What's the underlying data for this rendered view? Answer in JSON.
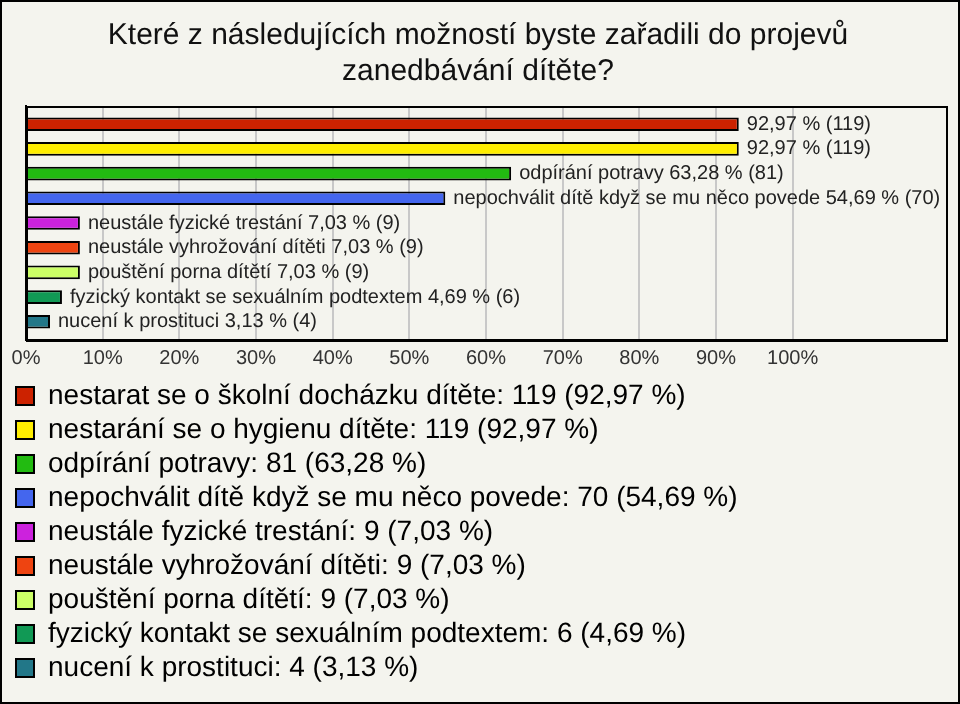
{
  "chart_data": {
    "type": "bar",
    "orientation": "horizontal",
    "title": "Které z následujících možností byste zařadili do projevů zanedbávání dítěte?",
    "categories": [
      null
    ],
    "series": [
      {
        "name": "nestarat se o školní docházku dítěte: 119 (92,97 %)",
        "color": "#cc2200",
        "values": [
          92.97
        ],
        "value_labels": [
          "92,97 % (119)"
        ]
      },
      {
        "name": "nestarání se o hygienu dítěte: 119 (92,97 %)",
        "color": "#ffee00",
        "values": [
          92.97
        ],
        "value_labels": [
          "92,97 % (119)"
        ]
      },
      {
        "name": "odpírání potravy: 81 (63,28 %)",
        "color": "#22bb11",
        "values": [
          63.28
        ],
        "value_labels": [
          "odpírání potravy 63,28 % (81)"
        ]
      },
      {
        "name": "nepochválit dítě když se mu něco povede: 70 (54,69 %)",
        "color": "#4466ee",
        "values": [
          54.69
        ],
        "value_labels": [
          "nepochválit dítě když se mu něco povede 54,69 % (70)"
        ]
      },
      {
        "name": "neustále fyzické trestání: 9 (7,03 %)",
        "color": "#cc22dd",
        "values": [
          7.03
        ],
        "value_labels": [
          "neustále fyzické trestání 7,03 % (9)"
        ]
      },
      {
        "name": "neustále vyhrožování dítěti: 9 (7,03 %)",
        "color": "#ee4411",
        "values": [
          7.03
        ],
        "value_labels": [
          "neustále vyhrožování dítěti 7,03 % (9)"
        ]
      },
      {
        "name": "pouštění porna dítětí: 9 (7,03 %)",
        "color": "#ccff66",
        "values": [
          7.03
        ],
        "value_labels": [
          "pouštění porna dítětí 7,03 % (9)"
        ]
      },
      {
        "name": "fyzický kontakt se sexuálním podtextem: 6 (4,69 %)",
        "color": "#119955",
        "values": [
          4.69
        ],
        "value_labels": [
          "fyzický kontakt se sexuálním podtextem 4,69 % (6)"
        ]
      },
      {
        "name": "nucení k prostituci: 4 (3,13 %)",
        "color": "#227788",
        "values": [
          3.13
        ],
        "value_labels": [
          "nucení k prostituci 3,13 % (4)"
        ]
      }
    ],
    "xlim": [
      0,
      120
    ],
    "xticks": [
      {
        "value": 0,
        "label": "0%"
      },
      {
        "value": 10,
        "label": "10%"
      },
      {
        "value": 20,
        "label": "20%"
      },
      {
        "value": 30,
        "label": "30%"
      },
      {
        "value": 40,
        "label": "40%"
      },
      {
        "value": 50,
        "label": "50%"
      },
      {
        "value": 60,
        "label": "60%"
      },
      {
        "value": 70,
        "label": "70%"
      },
      {
        "value": 80,
        "label": "80%"
      },
      {
        "value": 90,
        "label": "90%"
      },
      {
        "value": 100,
        "label": "100%"
      }
    ],
    "grid": "x",
    "legend": "bottom",
    "tick_labels": "x"
  }
}
